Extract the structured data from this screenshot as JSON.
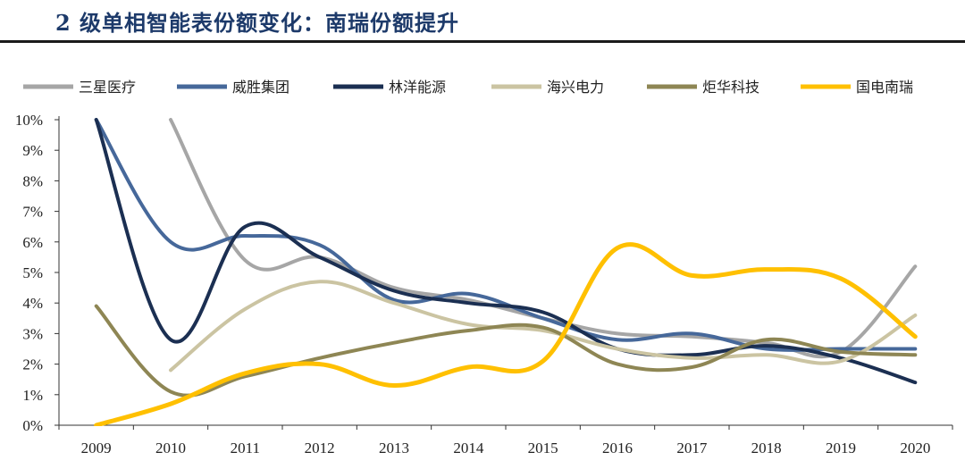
{
  "title": "2 级单相智能表份额变化：南瑞份额提升",
  "chart_data": {
    "type": "line",
    "title": "2 级单相智能表份额变化：南瑞份额提升",
    "xlabel": "",
    "ylabel": "",
    "x": [
      "2009",
      "2010",
      "2011",
      "2012",
      "2013",
      "2014",
      "2015",
      "2016",
      "2017",
      "2018",
      "2019",
      "2020"
    ],
    "ylim": [
      0,
      10
    ],
    "y_ticks": [
      "0%",
      "1%",
      "2%",
      "3%",
      "4%",
      "5%",
      "6%",
      "7%",
      "8%",
      "9%",
      "10%"
    ],
    "grid": false,
    "legend_position": "top",
    "series": [
      {
        "name": "三星医疗",
        "color": "#a6a6a6",
        "values": [
          null,
          10.0,
          5.4,
          5.5,
          4.5,
          4.1,
          3.5,
          3.0,
          2.9,
          2.7,
          2.4,
          5.2
        ]
      },
      {
        "name": "威胜集团",
        "color": "#46689a",
        "values": [
          10.0,
          6.0,
          6.2,
          5.9,
          4.1,
          4.3,
          3.5,
          2.8,
          3.0,
          2.5,
          2.5,
          2.5
        ]
      },
      {
        "name": "林洋能源",
        "color": "#1b2f52",
        "values": [
          10.0,
          2.8,
          6.5,
          5.5,
          4.4,
          4.0,
          3.7,
          2.5,
          2.3,
          2.6,
          2.2,
          1.4
        ]
      },
      {
        "name": "海兴电力",
        "color": "#cbc4a2",
        "values": [
          null,
          1.8,
          3.8,
          4.7,
          4.0,
          3.3,
          3.1,
          2.5,
          2.2,
          2.3,
          2.1,
          3.6
        ]
      },
      {
        "name": "炬华科技",
        "color": "#8e8654",
        "values": [
          3.9,
          1.1,
          1.6,
          2.2,
          2.7,
          3.1,
          3.2,
          2.0,
          1.9,
          2.8,
          2.4,
          2.3
        ]
      },
      {
        "name": "国电南瑞",
        "color": "#ffc000",
        "values": [
          0.0,
          0.7,
          1.7,
          2.0,
          1.3,
          1.9,
          2.1,
          5.8,
          4.9,
          5.1,
          4.8,
          2.9
        ]
      }
    ]
  }
}
